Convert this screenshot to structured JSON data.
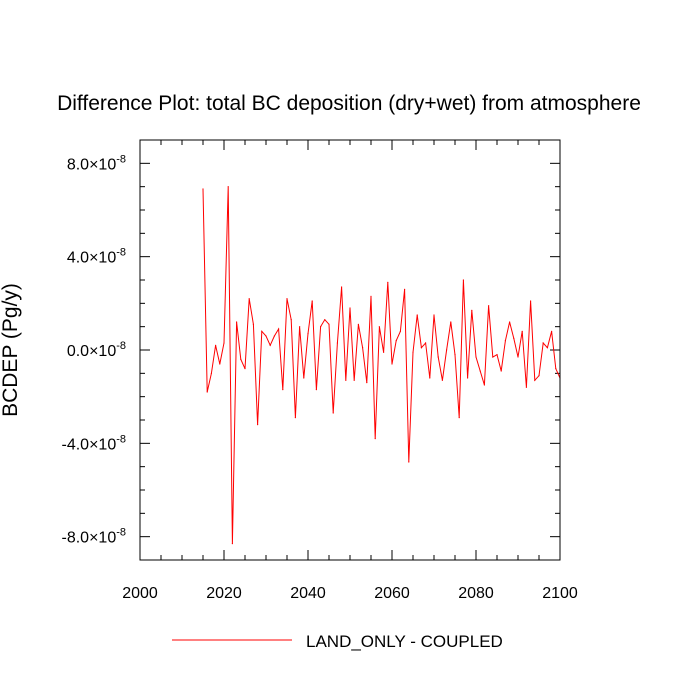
{
  "chart_data": {
    "type": "line",
    "title": "Difference Plot: total BC deposition (dry+wet) from atmosphere",
    "ylabel": "BCDEP  (Pg/y)",
    "xlabel": "",
    "xlim": [
      2000,
      2100
    ],
    "ylim": [
      -9e-08,
      9e-08
    ],
    "x_ticks": [
      {
        "value": 2000,
        "label": "2000"
      },
      {
        "value": 2020,
        "label": "2020"
      },
      {
        "value": 2040,
        "label": "2040"
      },
      {
        "value": 2060,
        "label": "2060"
      },
      {
        "value": 2080,
        "label": "2080"
      },
      {
        "value": 2100,
        "label": "2100"
      }
    ],
    "y_ticks": [
      {
        "value": 8e-08,
        "mantissa": "8.0",
        "exponent": "-8"
      },
      {
        "value": 4e-08,
        "mantissa": "4.0",
        "exponent": "-8"
      },
      {
        "value": 0,
        "mantissa": "0.0",
        "exponent": "-8"
      },
      {
        "value": -4e-08,
        "mantissa": "-4.0",
        "exponent": "-8"
      },
      {
        "value": -8e-08,
        "mantissa": "-8.0",
        "exponent": "-8"
      }
    ],
    "grid": false,
    "legend_position": "bottom-center",
    "series": [
      {
        "name": "LAND_ONLY - COUPLED",
        "color": "#ff0000",
        "x": [
          2015,
          2016,
          2017,
          2018,
          2019,
          2020,
          2021,
          2022,
          2023,
          2024,
          2025,
          2026,
          2027,
          2028,
          2029,
          2030,
          2031,
          2032,
          2033,
          2034,
          2035,
          2036,
          2037,
          2038,
          2039,
          2040,
          2041,
          2042,
          2043,
          2044,
          2045,
          2046,
          2047,
          2048,
          2049,
          2050,
          2051,
          2052,
          2053,
          2054,
          2055,
          2056,
          2057,
          2058,
          2059,
          2060,
          2061,
          2062,
          2063,
          2064,
          2065,
          2066,
          2067,
          2068,
          2069,
          2070,
          2071,
          2072,
          2073,
          2074,
          2075,
          2076,
          2077,
          2078,
          2079,
          2080,
          2081,
          2082,
          2083,
          2084,
          2085,
          2086,
          2087,
          2088,
          2089,
          2090,
          2091,
          2092,
          2093,
          2094,
          2095,
          2096,
          2097,
          2098,
          2099,
          2100
        ],
        "y": [
          6.9e-08,
          -1.8e-08,
          -1e-08,
          2e-09,
          -6e-09,
          3e-09,
          7e-08,
          -8.3e-08,
          1.2e-08,
          -4e-09,
          -8e-09,
          2.2e-08,
          1.1e-08,
          -3.2e-08,
          8e-09,
          6e-09,
          2e-09,
          6e-09,
          9e-09,
          -1.7e-08,
          2.2e-08,
          1.3e-08,
          -2.9e-08,
          1e-08,
          -1.2e-08,
          7e-09,
          2.1e-08,
          -1.7e-08,
          1e-08,
          1.3e-08,
          1.1e-08,
          -2.7e-08,
          3e-09,
          2.7e-08,
          -1.3e-08,
          1.8e-08,
          -1.3e-08,
          1.1e-08,
          1e-09,
          -1.4e-08,
          2.3e-08,
          -3.8e-08,
          1e-08,
          -1e-09,
          2.9e-08,
          -6e-09,
          4e-09,
          8e-09,
          2.6e-08,
          -4.8e-08,
          -1e-09,
          1.5e-08,
          1e-09,
          3e-09,
          -1.2e-08,
          1.5e-08,
          -3e-09,
          -1.3e-08,
          0.0,
          1.2e-08,
          -2e-09,
          -2.9e-08,
          3e-08,
          -1.2e-08,
          1.7e-08,
          -3e-09,
          -9e-09,
          -1.5e-08,
          1.9e-08,
          -3e-09,
          -2e-09,
          -9e-09,
          4e-09,
          1.2e-08,
          5e-09,
          -3e-09,
          8e-09,
          -1.6e-08,
          2.1e-08,
          -1.3e-08,
          -1.1e-08,
          3e-09,
          1e-09,
          8e-09,
          -8e-09,
          -1.2e-08
        ]
      }
    ]
  }
}
